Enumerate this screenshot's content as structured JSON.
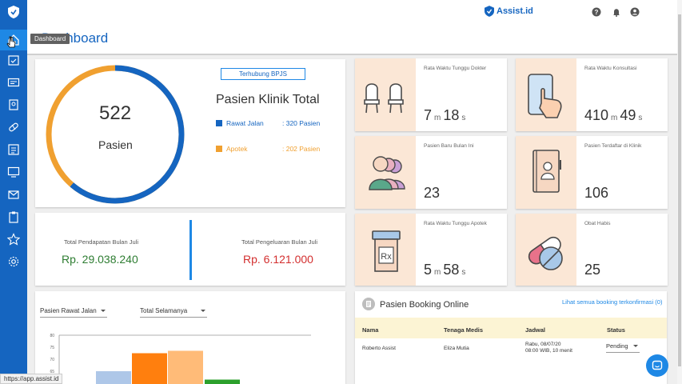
{
  "brand": {
    "name": "Assist.id"
  },
  "page": {
    "title": "Dashboard",
    "tooltip": "Dashboard"
  },
  "colors": {
    "primary": "#1565c0",
    "rawat_jalan": "#1565c0",
    "apotek": "#f0a030",
    "pendapatan": "#2e7d32",
    "pengeluaran": "#d32f2f"
  },
  "patients": {
    "total": "522",
    "unit": "Pasien",
    "badge": "Terhubung BPJS",
    "title": "Pasien Klinik Total",
    "rawat_jalan": {
      "label": "Rawat Jalan",
      "value": ": 320 Pasien",
      "count": 320
    },
    "apotek": {
      "label": "Apotek",
      "value": ": 202 Pasien",
      "count": 202
    }
  },
  "revenue": {
    "pendapatan_label": "Total Pendapatan Bulan Juli",
    "pendapatan_value": "Rp. 29.038.240",
    "pengeluaran_label": "Total Pengeluaran Bulan Juli",
    "pengeluaran_value": "Rp. 6.121.000"
  },
  "stats": {
    "tunggu_dokter": {
      "label": "Rata Waktu Tunggu Dokter",
      "v1": "7",
      "u1": "m",
      "v2": "18",
      "u2": "s"
    },
    "konsultasi": {
      "label": "Rata Waktu Konsultasi",
      "v1": "410",
      "u1": "m",
      "v2": "49",
      "u2": "s"
    },
    "pasien_baru": {
      "label": "Pasien Baru Bulan Ini",
      "value": "23"
    },
    "terdaftar": {
      "label": "Pasien Terdaftar di Klinik",
      "value": "106"
    },
    "tunggu_apotek": {
      "label": "Rata Waktu Tunggu Apotek",
      "v1": "5",
      "u1": "m",
      "v2": "58",
      "u2": "s"
    },
    "obat_habis": {
      "label": "Obat Habis",
      "value": "25"
    }
  },
  "filters": {
    "patient_type": "Pasien Rawat Jalan",
    "period": "Total Selamanya"
  },
  "chart_data": {
    "type": "bar",
    "title": "",
    "xlabel": "",
    "ylabel": "",
    "ylim": [
      60,
      80
    ],
    "tick_labels": [
      "80",
      "75",
      "70",
      "65"
    ],
    "values": [
      65,
      72.5,
      73.5,
      61.5
    ],
    "colors": [
      "#aec7e8",
      "#ff7f0e",
      "#ffbb78",
      "#2ca02c"
    ]
  },
  "booking": {
    "title": "Pasien Booking Online",
    "link": "Lihat semua booking terkonfirmasi (0)",
    "headers": {
      "nama": "Nama",
      "tenaga": "Tenaga Medis",
      "jadwal": "Jadwal",
      "status": "Status"
    },
    "row": {
      "nama": "Roberto Assist",
      "tenaga": "Eliza Mutia",
      "jadwal_line1": "Rabu, 08/07/20",
      "jadwal_line2": "08:00 WIB, 10 menit",
      "status": "Pending"
    }
  },
  "statusbar": {
    "url": "https://app.assist.id"
  }
}
